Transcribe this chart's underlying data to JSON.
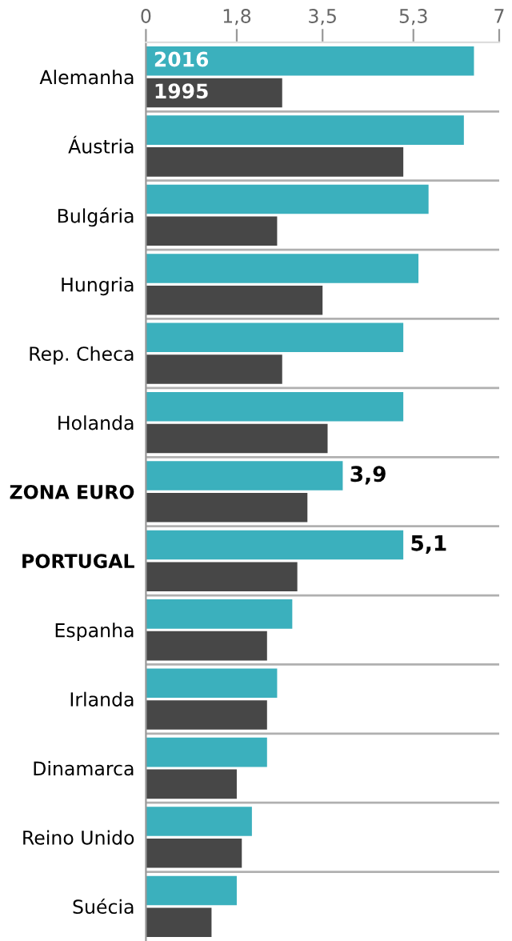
{
  "chart_data": {
    "type": "bar",
    "orientation": "horizontal",
    "categories": [
      "Alemanha",
      "Áustria",
      "Bulgária",
      "Hungria",
      "Rep. Checa",
      "Holanda",
      "ZONA EURO",
      "PORTUGAL",
      "Espanha",
      "Irlanda",
      "Dinamarca",
      "Reino Unido",
      "Suécia"
    ],
    "series": [
      {
        "name": "2016",
        "color": "#3bb0bd",
        "values": [
          6.5,
          6.3,
          5.6,
          5.4,
          5.1,
          5.1,
          3.9,
          5.1,
          2.9,
          2.6,
          2.4,
          2.1,
          1.8
        ],
        "value_labels": [
          null,
          null,
          null,
          null,
          null,
          null,
          "3,9",
          "5,1",
          null,
          null,
          null,
          null,
          null
        ]
      },
      {
        "name": "1995",
        "color": "#474747",
        "values": [
          2.7,
          5.1,
          2.6,
          3.5,
          2.7,
          3.6,
          3.2,
          3.0,
          2.4,
          2.4,
          1.8,
          1.9,
          1.3
        ]
      }
    ],
    "xlim": [
      0,
      7
    ],
    "xticks": [
      0,
      {
        "value": 1.8,
        "label": "1,8"
      },
      {
        "value": 3.5,
        "label": "3,5"
      },
      {
        "value": 5.3,
        "label": "5,3"
      },
      7
    ],
    "legend": "top left"
  }
}
